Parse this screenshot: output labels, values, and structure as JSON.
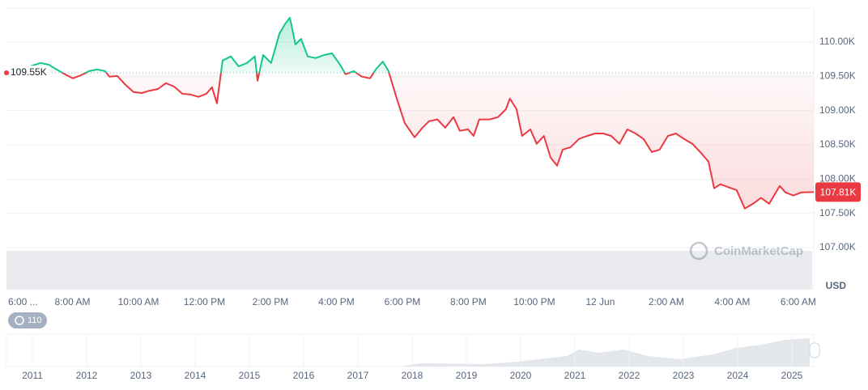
{
  "chart_data": {
    "type": "line",
    "ylabel": "USD",
    "watermark": "CoinMarketCap",
    "up_color": "#16c784",
    "down_color": "#ea3943",
    "baseline": {
      "value": 109550,
      "label": "109.55K"
    },
    "last_price": {
      "value": 107810,
      "label": "107.81K"
    },
    "xlim": [
      6,
      30.47
    ],
    "ylim": [
      107000,
      110500
    ],
    "yticks": [
      {
        "value": 107000,
        "label": "107.00K"
      },
      {
        "value": 107500,
        "label": "107.50K"
      },
      {
        "value": 108000,
        "label": "108.00K"
      },
      {
        "value": 108500,
        "label": "108.50K"
      },
      {
        "value": 109000,
        "label": "109.00K"
      },
      {
        "value": 109500,
        "label": "109.50K"
      },
      {
        "value": 110000,
        "label": "110.00K"
      }
    ],
    "xticks": [
      {
        "value": 6,
        "label": "6:00 ..."
      },
      {
        "value": 8,
        "label": "8:00 AM"
      },
      {
        "value": 10,
        "label": "10:00 AM"
      },
      {
        "value": 12,
        "label": "12:00 PM"
      },
      {
        "value": 14,
        "label": "2:00 PM"
      },
      {
        "value": 16,
        "label": "4:00 PM"
      },
      {
        "value": 18,
        "label": "6:00 PM"
      },
      {
        "value": 20,
        "label": "8:00 PM"
      },
      {
        "value": 22,
        "label": "10:00 PM"
      },
      {
        "value": 24,
        "label": "12 Jun"
      },
      {
        "value": 26,
        "label": "2:00 AM"
      },
      {
        "value": 28,
        "label": "4:00 AM"
      },
      {
        "value": 30,
        "label": "6:00 AM"
      }
    ],
    "x": [
      6.0,
      7.03,
      7.28,
      7.52,
      7.77,
      8.01,
      8.26,
      8.5,
      8.75,
      8.99,
      9.12,
      9.36,
      9.61,
      9.85,
      10.1,
      10.34,
      10.59,
      10.83,
      11.08,
      11.33,
      11.57,
      11.82,
      12.06,
      12.23,
      12.38,
      12.55,
      12.8,
      13.04,
      13.29,
      13.53,
      13.61,
      13.78,
      14.02,
      14.27,
      14.44,
      14.59,
      14.76,
      14.93,
      15.13,
      15.37,
      15.62,
      15.87,
      16.11,
      16.28,
      16.53,
      16.77,
      17.02,
      17.21,
      17.41,
      17.58,
      17.83,
      18.07,
      18.37,
      18.61,
      18.81,
      19.06,
      19.3,
      19.55,
      19.74,
      19.99,
      20.16,
      20.33,
      20.65,
      20.9,
      21.14,
      21.26,
      21.46,
      21.63,
      21.88,
      22.07,
      22.29,
      22.49,
      22.69,
      22.86,
      23.1,
      23.35,
      23.6,
      23.84,
      24.09,
      24.33,
      24.58,
      24.82,
      25.07,
      25.31,
      25.56,
      25.8,
      26.05,
      26.29,
      26.54,
      26.79,
      27.03,
      27.28,
      27.45,
      27.64,
      27.89,
      28.13,
      28.38,
      28.63,
      28.87,
      29.12,
      29.44,
      29.61,
      29.85,
      30.1,
      30.47
    ],
    "values": [
      109530,
      109695,
      109670,
      109600,
      109530,
      109470,
      109515,
      109575,
      109600,
      109575,
      109495,
      109505,
      109375,
      109270,
      109255,
      109290,
      109315,
      109400,
      109350,
      109245,
      109235,
      109200,
      109245,
      109340,
      109105,
      109730,
      109790,
      109645,
      109695,
      109790,
      109435,
      109810,
      109695,
      110120,
      110260,
      110355,
      109965,
      110045,
      109790,
      109765,
      109810,
      109835,
      109670,
      109530,
      109575,
      109495,
      109470,
      109610,
      109715,
      109575,
      109175,
      108820,
      108610,
      108750,
      108845,
      108870,
      108750,
      108905,
      108705,
      108725,
      108630,
      108870,
      108870,
      108905,
      109020,
      109175,
      109020,
      108630,
      108725,
      108515,
      108630,
      108315,
      108195,
      108430,
      108465,
      108585,
      108630,
      108665,
      108665,
      108630,
      108515,
      108725,
      108665,
      108585,
      108395,
      108430,
      108630,
      108665,
      108585,
      108515,
      108395,
      108255,
      107865,
      107925,
      107880,
      107840,
      107570,
      107640,
      107725,
      107640,
      107900,
      107805,
      107760,
      107805,
      107810
    ]
  },
  "navigator": {
    "history_badge": "110",
    "years": [
      "2011",
      "2012",
      "2013",
      "2014",
      "2015",
      "2016",
      "2017",
      "2018",
      "2019",
      "2020",
      "2021",
      "2022",
      "2023",
      "2024",
      "2025"
    ]
  }
}
